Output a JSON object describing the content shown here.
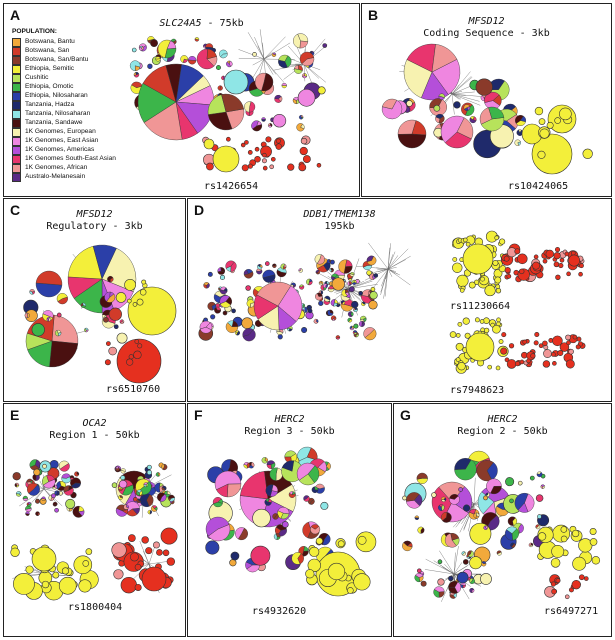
{
  "legend": {
    "heading": "POPULATION:",
    "items": [
      {
        "name": "Botswana, Bantu",
        "color": "#f2a93b"
      },
      {
        "name": "Botswana, San",
        "color": "#d13b2a"
      },
      {
        "name": "Botswana, San/Bantu",
        "color": "#8a3a2a"
      },
      {
        "name": "Ethiopia, Semitic",
        "color": "#f3ef3a"
      },
      {
        "name": "Cushitic",
        "color": "#b7e35b"
      },
      {
        "name": "Ethiopia, Omotic",
        "color": "#3cb54a"
      },
      {
        "name": "Ethiopia, Nilosaharan",
        "color": "#2b3fa8"
      },
      {
        "name": "Tanzania, Hadza",
        "color": "#1f2a6b"
      },
      {
        "name": "Tanzania, Nilosaharan",
        "color": "#8fe6e6"
      },
      {
        "name": "Tanzania, Sandawe",
        "color": "#4a1010"
      },
      {
        "name": "1K Genomes, European",
        "color": "#f7f2b0"
      },
      {
        "name": "1K Genomes, East Asian",
        "color": "#ef86e0"
      },
      {
        "name": "1K Genomes, Americas",
        "color": "#b44fd9"
      },
      {
        "name": "1K Genomes South-East Asian",
        "color": "#e8356e"
      },
      {
        "name": "1K Genomes, African",
        "color": "#f09696"
      },
      {
        "name": "Australo-Melanesain",
        "color": "#5a2a86"
      }
    ]
  },
  "panels": [
    {
      "id": "A",
      "gene": "SLC24A5",
      "title_suffix": " - 75kb",
      "subtitle": "",
      "rs": "rs1426654"
    },
    {
      "id": "B",
      "gene": "MFSD12",
      "title_suffix": "",
      "subtitle": "Coding Sequence - 3kb",
      "rs": "rs10424065"
    },
    {
      "id": "C",
      "gene": "MFSD12",
      "title_suffix": "",
      "subtitle": "Regulatory - 3kb",
      "rs": "rs6510760"
    },
    {
      "id": "D",
      "gene": "DDB1/TMEM138",
      "title_suffix": "",
      "subtitle": "195kb",
      "rs": "rs11230664",
      "rs2": "rs7948623"
    },
    {
      "id": "E",
      "gene": "OCA2",
      "title_suffix": "",
      "subtitle": "Region 1 - 50kb",
      "rs": "rs1800404"
    },
    {
      "id": "F",
      "gene": "HERC2",
      "title_suffix": "",
      "subtitle": "Region 3 - 50kb",
      "rs": "rs4932620"
    },
    {
      "id": "G",
      "gene": "HERC2",
      "title_suffix": "",
      "subtitle": "Region 2 - 50kb",
      "rs": "rs6497271"
    }
  ]
}
